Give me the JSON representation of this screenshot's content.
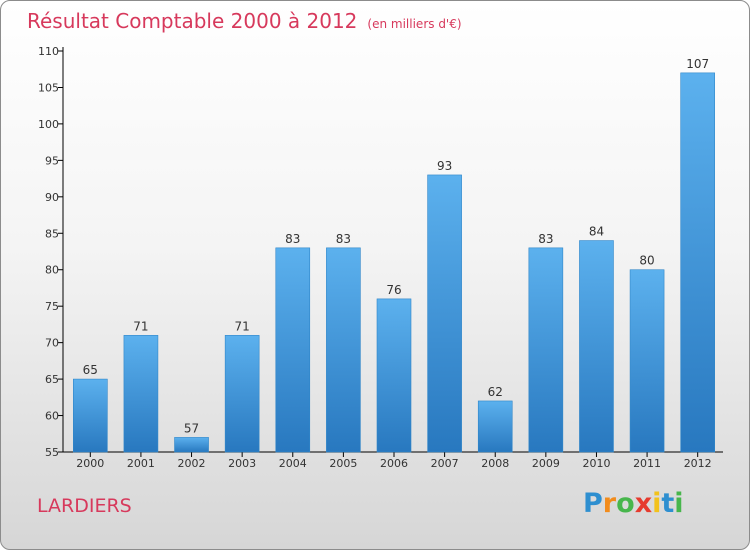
{
  "chart_data": {
    "type": "bar",
    "title": "Résultat Comptable 2000 à 2012",
    "unit": "(en milliers d'€)",
    "categories": [
      "2000",
      "2001",
      "2002",
      "2003",
      "2004",
      "2005",
      "2006",
      "2007",
      "2008",
      "2009",
      "2010",
      "2011",
      "2012"
    ],
    "values": [
      65,
      71,
      57,
      71,
      83,
      83,
      76,
      93,
      62,
      83,
      84,
      80,
      107
    ],
    "ylim": [
      55,
      110
    ],
    "yticks": [
      55,
      60,
      65,
      70,
      75,
      80,
      85,
      90,
      95,
      100,
      105,
      110
    ],
    "xlabel": "",
    "ylabel": "",
    "grid": false,
    "bar_color": "#3b94d9"
  },
  "commune": "LARDIERS",
  "logo": {
    "letters": [
      "P",
      "r",
      "o",
      "x",
      "i",
      "t",
      "i"
    ],
    "colors": [
      "#2e8fd0",
      "#f28c1c",
      "#47b64c",
      "#e63b2e",
      "#f2c21c",
      "#2e8fd0",
      "#47b64c"
    ]
  },
  "colors": {
    "title": "#d7395c",
    "axis": "#000000"
  }
}
